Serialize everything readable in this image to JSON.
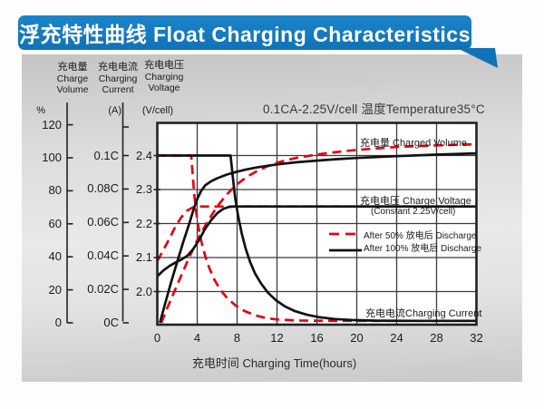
{
  "title": "浮充特性曲线 Float Charging Characteristics",
  "colors": {
    "banner_blue": "#1478be",
    "curve_red": "#e60012",
    "curve_black": "#111111",
    "grid": "#3b3b3b",
    "panel_gray": "#d9d9d9"
  },
  "condition_note": "0.1CA-2.25V/cell  温度Temperature35°C",
  "y_axes": [
    {
      "zh": "充电量",
      "en1": "Charge",
      "en2": "Volume",
      "unit": "%",
      "ticks": [
        "120",
        "100",
        "80",
        "60",
        "40",
        "20",
        "0"
      ]
    },
    {
      "zh": "充电电流",
      "en1": "Charging",
      "en2": "Current",
      "unit": "(A)",
      "ticks": [
        "0.1C",
        "0.08C",
        "0.06C",
        "0.04C",
        "0.02C",
        "0C"
      ]
    },
    {
      "zh": "充电电压",
      "en1": "Charging",
      "en2": "Voltage",
      "unit": "(V/cell)",
      "ticks": [
        "2.4",
        "2.3",
        "2.2",
        "2.1",
        "2.0"
      ]
    }
  ],
  "x_axis": {
    "ticks": [
      "0",
      "4",
      "8",
      "12",
      "16",
      "20",
      "24",
      "28",
      "32"
    ],
    "label": "充电时间 Charging Time(hours)"
  },
  "labels": {
    "charged_volume": "充电量 Charged Volume",
    "charge_voltage": "充电电压 Charge Voltage",
    "constant": "(Constant 2.25V/cell)",
    "charging_current": "充电电流Charging Current"
  },
  "legend": [
    {
      "label": "After 50%  放电后 Discharge",
      "style": "dashed",
      "color": "#e60012"
    },
    {
      "label": "After 100%  放电后 Discharge",
      "style": "solid",
      "color": "#111111"
    }
  ],
  "chart_data": {
    "type": "line",
    "title": "浮充特性曲线 Float Charging Characteristics",
    "xlabel": "充电时间 Charging Time(hours)",
    "x_range": [
      0,
      32
    ],
    "x_gridlines_every_hours": 4,
    "grid": true,
    "legend_position": "inside-right",
    "axes": {
      "percent": {
        "label": "充电量 Charge Volume (%)",
        "min": 0,
        "max": 120
      },
      "c_rate": {
        "label": "充电电流 Charging Current (A)",
        "min": 0,
        "max": 0.12
      },
      "volt": {
        "label": "充电电压 Charging Voltage (V/cell)",
        "min": 1.9,
        "max": 2.45
      }
    },
    "series": [
      {
        "name": "Charged Volume after 50% discharge",
        "unit": "percent",
        "color": "#e60012",
        "dash": true,
        "points": [
          [
            0.4,
            0
          ],
          [
            1,
            9
          ],
          [
            2,
            23
          ],
          [
            3,
            37
          ],
          [
            4,
            50
          ],
          [
            5,
            61
          ],
          [
            6,
            70.5
          ],
          [
            7,
            78
          ],
          [
            8,
            84
          ],
          [
            9,
            88.5
          ],
          [
            10,
            92
          ],
          [
            11,
            94.8
          ],
          [
            12,
            97
          ],
          [
            13,
            98.7
          ],
          [
            14,
            100
          ],
          [
            16,
            102
          ],
          [
            18,
            103.5
          ],
          [
            20,
            104.8
          ],
          [
            24,
            106.6
          ],
          [
            28,
            107.5
          ],
          [
            32,
            108.2
          ]
        ]
      },
      {
        "name": "Charge Voltage after 50% discharge",
        "unit": "volt",
        "color": "#e60012",
        "dash": true,
        "points": [
          [
            0,
            2.09
          ],
          [
            0.6,
            2.122
          ],
          [
            1.2,
            2.155
          ],
          [
            1.8,
            2.19
          ],
          [
            2.4,
            2.218
          ],
          [
            3,
            2.238
          ],
          [
            3.6,
            2.248
          ],
          [
            4.2,
            2.25
          ],
          [
            32,
            2.25
          ]
        ]
      },
      {
        "name": "Charging Current after 50% discharge",
        "unit": "c_rate",
        "color": "#e60012",
        "dash": true,
        "points": [
          [
            0,
            0.1
          ],
          [
            3.4,
            0.1
          ],
          [
            3.55,
            0.088
          ],
          [
            3.7,
            0.077
          ],
          [
            3.9,
            0.066
          ],
          [
            4.1,
            0.058
          ],
          [
            4.4,
            0.049
          ],
          [
            4.8,
            0.04
          ],
          [
            5.2,
            0.033
          ],
          [
            5.7,
            0.026
          ],
          [
            6.3,
            0.02
          ],
          [
            7,
            0.0148
          ],
          [
            7.8,
            0.0106
          ],
          [
            8.7,
            0.0072
          ],
          [
            9.7,
            0.0047
          ],
          [
            10.8,
            0.003
          ],
          [
            12,
            0.002
          ],
          [
            14,
            0.0014
          ],
          [
            17,
            0.0012
          ],
          [
            32,
            0.0012
          ]
        ]
      },
      {
        "name": "Charge Voltage after 100% discharge",
        "unit": "volt",
        "color": "#111111",
        "dash": false,
        "points": [
          [
            0,
            2.045
          ],
          [
            0.6,
            2.062
          ],
          [
            1.2,
            2.075
          ],
          [
            1.8,
            2.085
          ],
          [
            2.4,
            2.094
          ],
          [
            3,
            2.105
          ],
          [
            3.6,
            2.125
          ],
          [
            4.2,
            2.152
          ],
          [
            4.8,
            2.185
          ],
          [
            5.4,
            2.21
          ],
          [
            6,
            2.23
          ],
          [
            6.6,
            2.243
          ],
          [
            7.2,
            2.249
          ],
          [
            7.8,
            2.25
          ],
          [
            32,
            2.25
          ]
        ]
      },
      {
        "name": "Charged Volume after 100% discharge",
        "unit": "percent",
        "color": "#111111",
        "dash": false,
        "points": [
          [
            0.25,
            0
          ],
          [
            0.8,
            12
          ],
          [
            1.4,
            25
          ],
          [
            2,
            37
          ],
          [
            2.6,
            49
          ],
          [
            3.2,
            60
          ],
          [
            3.6,
            68
          ],
          [
            4,
            75
          ],
          [
            4.4,
            80
          ],
          [
            4.8,
            83.3
          ],
          [
            5.4,
            85.8
          ],
          [
            6,
            87.6
          ],
          [
            7,
            89.9
          ],
          [
            8,
            91.6
          ],
          [
            9,
            93
          ],
          [
            10,
            94.2
          ],
          [
            12,
            96
          ],
          [
            14,
            97.3
          ],
          [
            16,
            98.3
          ],
          [
            18,
            99.2
          ],
          [
            20,
            99.9
          ],
          [
            24,
            101
          ],
          [
            28,
            101.9
          ],
          [
            32,
            102.7
          ]
        ]
      },
      {
        "name": "Charging Current after 100% discharge",
        "unit": "c_rate",
        "color": "#111111",
        "dash": false,
        "points": [
          [
            0,
            0.1
          ],
          [
            7.35,
            0.1
          ],
          [
            7.55,
            0.088
          ],
          [
            7.8,
            0.075
          ],
          [
            8.1,
            0.064
          ],
          [
            8.45,
            0.054
          ],
          [
            8.85,
            0.0445
          ],
          [
            9.3,
            0.0365
          ],
          [
            9.8,
            0.0295
          ],
          [
            10.4,
            0.0235
          ],
          [
            11.1,
            0.018
          ],
          [
            11.9,
            0.0135
          ],
          [
            12.8,
            0.0098
          ],
          [
            13.8,
            0.007
          ],
          [
            15,
            0.0048
          ],
          [
            16.3,
            0.0033
          ],
          [
            17.8,
            0.0023
          ],
          [
            19.5,
            0.0017
          ],
          [
            22,
            0.0013
          ],
          [
            26,
            0.0012
          ],
          [
            32,
            0.0012
          ]
        ]
      }
    ]
  }
}
